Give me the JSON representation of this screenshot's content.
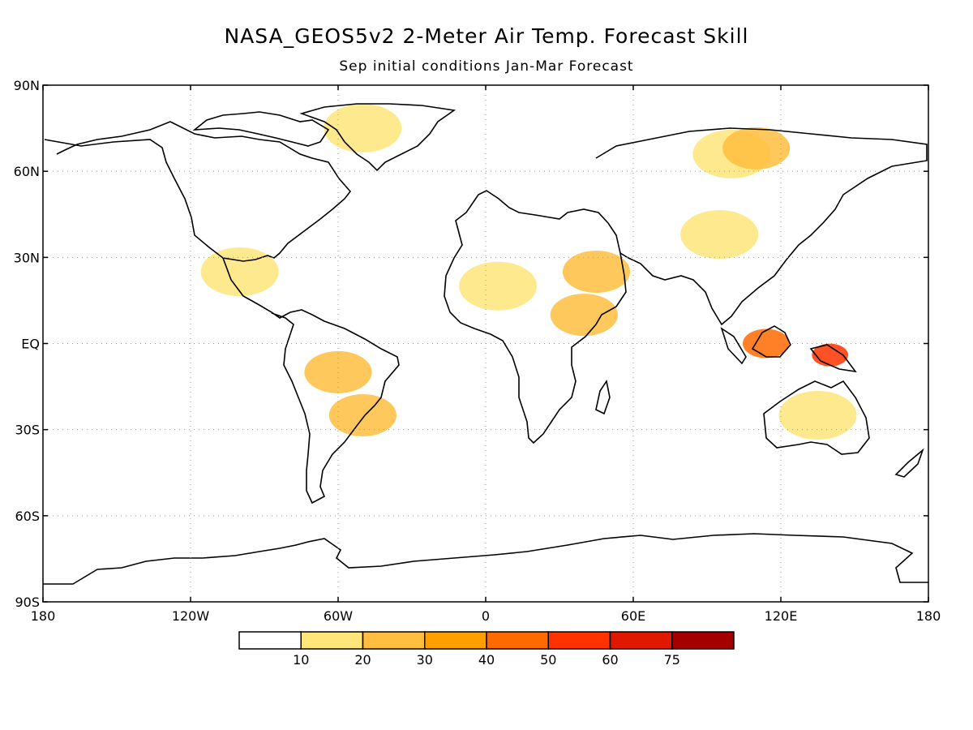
{
  "title": "NASA_GEOS5v2 2-Meter Air Temp. Forecast Skill",
  "subtitle": "Sep initial conditions  Jan-Mar Forecast",
  "lat_ticks": [
    "90N",
    "60N",
    "30N",
    "EQ",
    "30S",
    "60S",
    "90S"
  ],
  "lon_ticks": [
    "180",
    "120W",
    "60W",
    "0",
    "60E",
    "120E",
    "180"
  ],
  "map": {
    "grid": true,
    "grid_style": "dotted",
    "projection": "equirectangular"
  },
  "colorbar": {
    "labels": [
      "10",
      "20",
      "30",
      "40",
      "50",
      "60",
      "75"
    ],
    "colors": [
      "#ffffff",
      "#ffe57a",
      "#ffbe40",
      "#ffa000",
      "#ff6a00",
      "#ff3200",
      "#e01800",
      "#a50000"
    ]
  },
  "skill_regions": [
    {
      "level": 1,
      "lon": -50,
      "lat": 75
    },
    {
      "level": 1,
      "lon": 100,
      "lat": 66
    },
    {
      "level": 2,
      "lon": 110,
      "lat": 68
    },
    {
      "level": 1,
      "lon": 95,
      "lat": 38
    },
    {
      "level": 1,
      "lon": 5,
      "lat": 20
    },
    {
      "level": 2,
      "lon": 40,
      "lat": 10
    },
    {
      "level": 2,
      "lon": 45,
      "lat": 25
    },
    {
      "level": 1,
      "lon": -100,
      "lat": 25
    },
    {
      "level": 2,
      "lon": -60,
      "lat": -10
    },
    {
      "level": 2,
      "lon": -50,
      "lat": -25
    },
    {
      "level": 1,
      "lon": 135,
      "lat": -25
    },
    {
      "level": 4,
      "lon": 114,
      "lat": 0
    },
    {
      "level": 5,
      "lon": 140,
      "lat": -4
    }
  ]
}
